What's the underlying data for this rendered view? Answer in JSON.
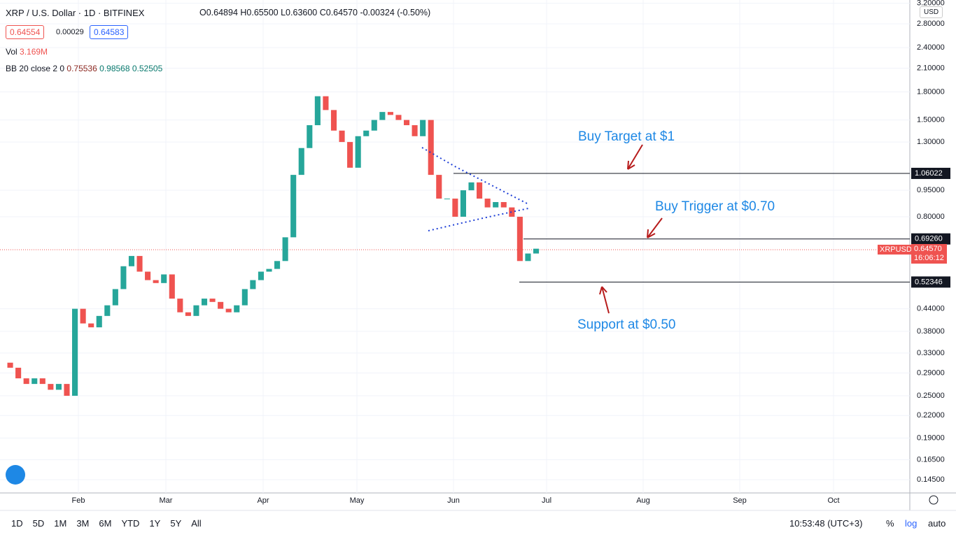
{
  "header": {
    "symbol": "XRP / U.S. Dollar · 1D · BITFINEX",
    "open": "O0.64894",
    "high": "H0.65500",
    "low": "L0.63600",
    "close": "C0.64570",
    "change": "-0.00324 (-0.50%)",
    "bid": "0.64554",
    "spread": "0.00029",
    "ask": "0.64583",
    "vol_label": "Vol",
    "vol_value": "3.169M",
    "bb_label": "BB 20 close 2 0",
    "bb_basis": "0.75536",
    "bb_upper": "0.98568",
    "bb_lower": "0.52505"
  },
  "chart_data": {
    "type": "candlestick",
    "log_scale": true,
    "ylim": [
      0.133,
      3.27
    ],
    "yticks": [
      {
        "value": 3.2,
        "label": "3.20000"
      },
      {
        "value": 2.8,
        "label": "2.80000"
      },
      {
        "value": 2.4,
        "label": "2.40000"
      },
      {
        "value": 2.1,
        "label": "2.10000"
      },
      {
        "value": 1.8,
        "label": "1.80000"
      },
      {
        "value": 1.5,
        "label": "1.50000"
      },
      {
        "value": 1.3,
        "label": "1.30000"
      },
      {
        "value": 0.95,
        "label": "0.95000"
      },
      {
        "value": 0.8,
        "label": "0.80000"
      },
      {
        "value": 0.44,
        "label": "0.44000"
      },
      {
        "value": 0.38,
        "label": "0.38000"
      },
      {
        "value": 0.33,
        "label": "0.33000"
      },
      {
        "value": 0.29,
        "label": "0.29000"
      },
      {
        "value": 0.25,
        "label": "0.25000"
      },
      {
        "value": 0.22,
        "label": "0.22000"
      },
      {
        "value": 0.19,
        "label": "0.19000"
      },
      {
        "value": 0.165,
        "label": "0.16500"
      },
      {
        "value": 0.145,
        "label": "0.14500"
      }
    ],
    "months": [
      "Feb",
      "Mar",
      "Apr",
      "May",
      "Jun",
      "Jul",
      "Aug",
      "Sep",
      "Oct"
    ],
    "close": [
      0.31,
      0.3,
      0.28,
      0.27,
      0.28,
      0.27,
      0.26,
      0.27,
      0.25,
      0.44,
      0.4,
      0.39,
      0.42,
      0.45,
      0.5,
      0.58,
      0.62,
      0.56,
      0.53,
      0.52,
      0.55,
      0.47,
      0.43,
      0.42,
      0.45,
      0.47,
      0.46,
      0.44,
      0.43,
      0.45,
      0.5,
      0.53,
      0.56,
      0.57,
      0.6,
      0.7,
      1.05,
      1.25,
      1.45,
      1.75,
      1.6,
      1.4,
      1.3,
      1.1,
      1.35,
      1.4,
      1.5,
      1.58,
      1.55,
      1.5,
      1.45,
      1.35,
      1.5,
      1.05,
      0.9,
      0.9,
      0.8,
      0.95,
      1.0,
      0.9,
      0.85,
      0.88,
      0.85,
      0.8,
      0.6,
      0.63,
      0.65
    ],
    "levels": [
      {
        "value": 1.06022,
        "label": "1.06022"
      },
      {
        "value": 0.6926,
        "label": "0.69260"
      },
      {
        "value": 0.52346,
        "label": "0.52346"
      }
    ],
    "last_price": {
      "value": 0.6457,
      "label": "0.64570",
      "symbol": "XRPUSD",
      "countdown": "16:06:12"
    },
    "currency": "USD",
    "annotations": [
      "Buy Target at $1",
      "Buy Trigger at $0.70",
      "Support at $0.50"
    ]
  },
  "toolbar": {
    "ranges": [
      "1D",
      "5D",
      "1M",
      "3M",
      "6M",
      "YTD",
      "1Y",
      "5Y",
      "All"
    ],
    "time": "10:53:48 (UTC+3)",
    "percent": "%",
    "log": "log",
    "auto": "auto"
  }
}
